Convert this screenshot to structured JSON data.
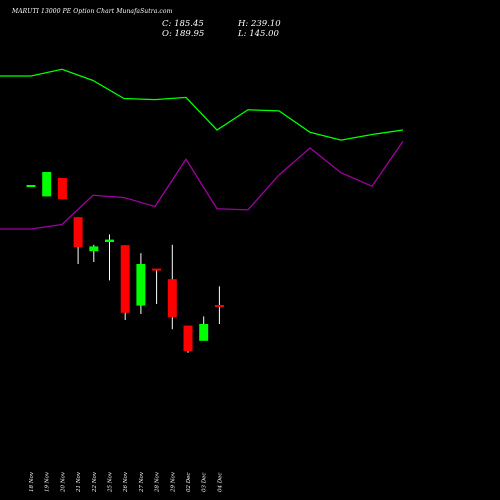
{
  "title": "MARUTI 13000 PE Option Chart MunafaSutra.com",
  "ohlc": {
    "c": "C: 185.45",
    "o": "O: 189.95",
    "h": "H: 239.10",
    "l": "L: 145.00"
  },
  "colors": {
    "background": "#000000",
    "up": "#00ff00",
    "down": "#ff0000",
    "line_upper": "#00ff00",
    "line_lower": "#a000a0",
    "text": "#ffffff"
  },
  "chart_data": {
    "type": "candlestick",
    "dates": [
      "18 Nov",
      "19 Nov",
      "20 Nov",
      "21 Nov",
      "22 Nov",
      "25 Nov",
      "26 Nov",
      "27 Nov",
      "28 Nov",
      "29 Nov",
      "02 Dec",
      "03 Dec",
      "04 Dec"
    ],
    "candles": [
      {
        "o": 490,
        "h": 490,
        "l": 490,
        "c": 490
      },
      {
        "o": 464,
        "h": 525,
        "l": 464,
        "c": 525
      },
      {
        "o": 510,
        "h": 510,
        "l": 457,
        "c": 457
      },
      {
        "o": 412,
        "h": 412,
        "l": 295,
        "c": 337
      },
      {
        "o": 327,
        "h": 343,
        "l": 300,
        "c": 339
      },
      {
        "o": 350,
        "h": 369,
        "l": 254,
        "c": 356
      },
      {
        "o": 342,
        "h": 342,
        "l": 155,
        "c": 173
      },
      {
        "o": 191,
        "h": 322,
        "l": 170,
        "c": 295
      },
      {
        "o": 281,
        "h": 281,
        "l": 195,
        "c": 276
      },
      {
        "o": 257,
        "h": 343,
        "l": 132,
        "c": 162
      },
      {
        "o": 141,
        "h": 141,
        "l": 73,
        "c": 77
      },
      {
        "o": 103,
        "h": 164,
        "l": 103,
        "c": 145
      },
      {
        "o": 189.95,
        "h": 239.1,
        "l": 145,
        "c": 185.45
      }
    ],
    "upper_line": [
      0.84,
      0.84,
      0.87,
      0.82,
      0.74,
      0.735,
      0.745,
      0.6,
      0.69,
      0.685,
      0.59,
      0.555,
      0.58,
      0.6
    ],
    "lower_line": [
      0.16,
      0.16,
      0.18,
      0.31,
      0.3,
      0.26,
      0.47,
      0.25,
      0.245,
      0.4,
      0.52,
      0.41,
      0.35,
      0.55
    ]
  }
}
